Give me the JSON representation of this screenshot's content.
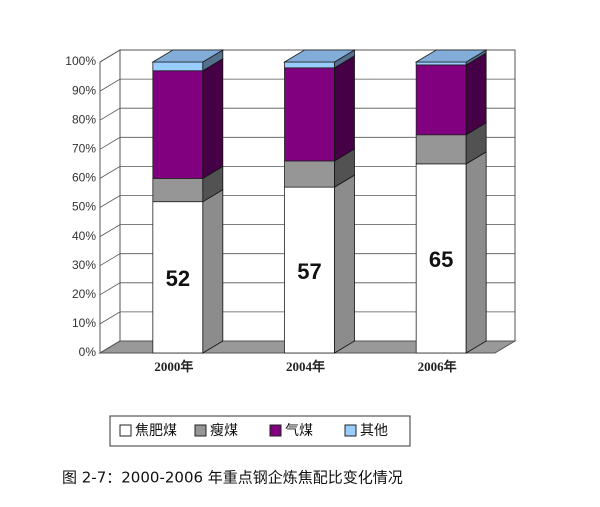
{
  "chart_data": {
    "type": "stacked_bar_3d",
    "caption": "图 2-7：2000-2006 年重点钢企炼焦配比变化情况",
    "categories": [
      "2000年",
      "2004年",
      "2006年"
    ],
    "series": [
      {
        "name": "焦肥煤",
        "color": "#ffffff",
        "values": [
          52,
          57,
          65
        ],
        "show_labels": true
      },
      {
        "name": "瘦煤",
        "color": "#969696",
        "values": [
          8,
          9,
          10
        ]
      },
      {
        "name": "气煤",
        "color": "#800080",
        "values": [
          37,
          32,
          24
        ]
      },
      {
        "name": "其他",
        "color": "#99ccff",
        "values": [
          3,
          2,
          1
        ]
      }
    ],
    "ylim": [
      0,
      100
    ],
    "yticks": [
      {
        "value": 0,
        "label": "0%"
      },
      {
        "value": 10,
        "label": "10%"
      },
      {
        "value": 20,
        "label": "20%"
      },
      {
        "value": 30,
        "label": "30%"
      },
      {
        "value": 40,
        "label": "40%"
      },
      {
        "value": 50,
        "label": "50%"
      },
      {
        "value": 60,
        "label": "60%"
      },
      {
        "value": 70,
        "label": "70%"
      },
      {
        "value": 80,
        "label": "80%"
      },
      {
        "value": 90,
        "label": "90%"
      },
      {
        "value": 100,
        "label": "100%"
      }
    ],
    "grid": true
  }
}
